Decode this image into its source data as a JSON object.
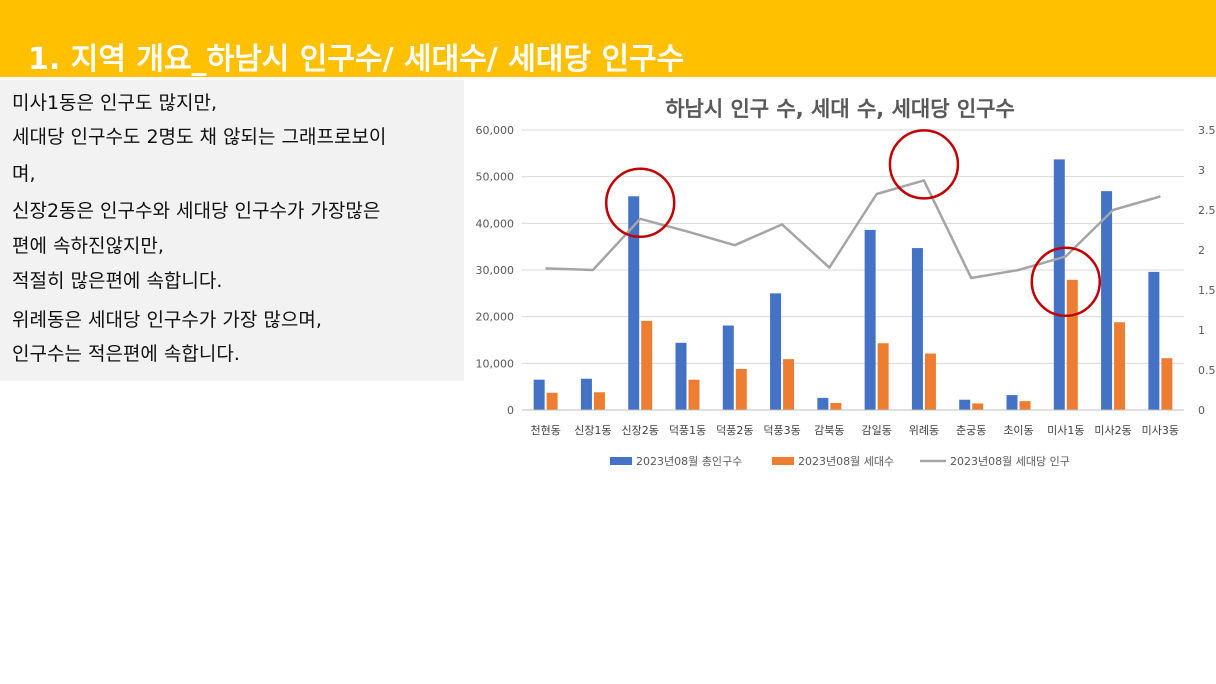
{
  "header": {
    "title": "1. 지역 개요_하남시 인구수/ 세대수/ 세대당 인구수"
  },
  "notes": {
    "lines": [
      "미사1동은 인구도 많지만,",
      "세대당 인구수도 2명도 채 않되는 그래프로보이",
      "며,",
      "신장2동은 인구수와 세대당 인구수가 가장많은",
      "편에 속하진않지만,",
      "적절히 많은편에 속합니다.",
      "위례동은 세대당 인구수가 가장 많으며,",
      "인구수는 적은편에 속합니다."
    ]
  },
  "colors": {
    "header_bg": "#FFC000",
    "series_population": "#4472C4",
    "series_households": "#ED7D31",
    "series_per_household": "#A5A5A5",
    "highlight_circle": "#C00000"
  },
  "chart_data": {
    "type": "bar",
    "title": "하남시 인구 수, 세대 수, 세대당 인구수",
    "categories": [
      "천현동",
      "신장1동",
      "신장2동",
      "덕풍1동",
      "덕풍2동",
      "덕풍3동",
      "감북동",
      "감일동",
      "위례동",
      "춘궁동",
      "초이동",
      "미사1동",
      "미사2동",
      "미사3동"
    ],
    "series": [
      {
        "name": "2023년08월 총인구수",
        "type": "bar",
        "axis": "left",
        "values": [
          6500,
          6700,
          45800,
          14400,
          18100,
          25000,
          2600,
          38600,
          34700,
          2200,
          3200,
          53700,
          46900,
          29600
        ]
      },
      {
        "name": "2023년08월 세대수",
        "type": "bar",
        "axis": "left",
        "values": [
          3700,
          3800,
          19100,
          6500,
          8800,
          10900,
          1500,
          14300,
          12100,
          1400,
          1900,
          27900,
          18800,
          11100
        ]
      },
      {
        "name": "2023년08월 세대당 인구",
        "type": "line",
        "axis": "right",
        "values": [
          1.77,
          1.75,
          2.39,
          2.23,
          2.06,
          2.32,
          1.78,
          2.7,
          2.87,
          1.65,
          1.75,
          1.92,
          2.5,
          2.67
        ]
      }
    ],
    "ylim": [
      0,
      60000
    ],
    "yticks": [
      "0",
      "10,000",
      "20,000",
      "30,000",
      "40,000",
      "50,000",
      "60,000"
    ],
    "y2lim": [
      0,
      3.5
    ],
    "y2ticks": [
      "0",
      "0.5",
      "1",
      "1.5",
      "2",
      "2.5",
      "3",
      "3.5"
    ],
    "grid": true,
    "legend_position": "bottom",
    "highlighted_categories": [
      "신장2동",
      "위례동",
      "미사1동"
    ]
  }
}
